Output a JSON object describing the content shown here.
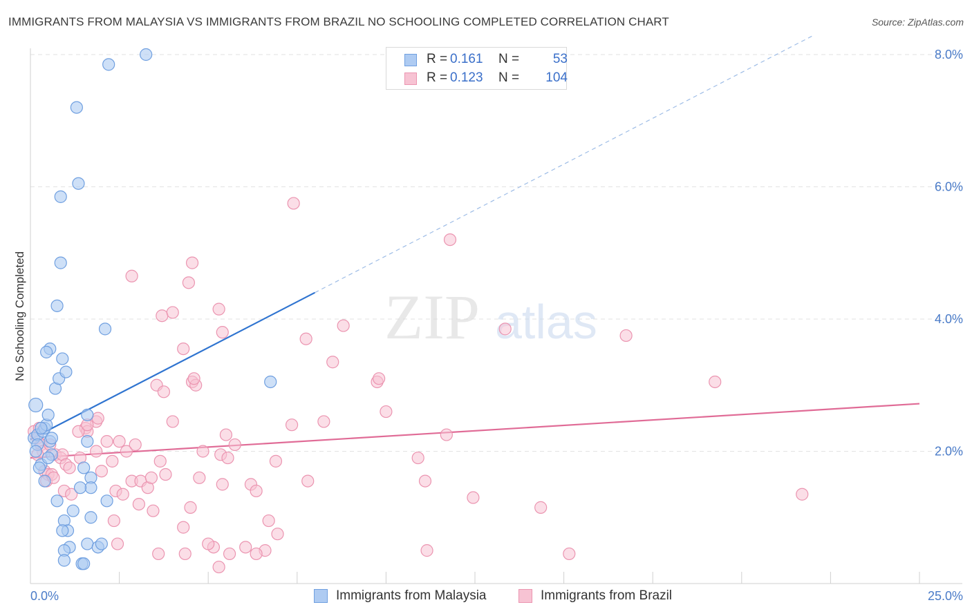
{
  "header": {
    "title": "IMMIGRANTS FROM MALAYSIA VS IMMIGRANTS FROM BRAZIL NO SCHOOLING COMPLETED CORRELATION CHART",
    "source": "Source: ZipAtlas.com"
  },
  "watermark": {
    "zip": "ZIP",
    "atlas": "atlas"
  },
  "legend_top": {
    "rows": [
      {
        "r_label": "R =",
        "r_value": "0.161",
        "n_label": "N =",
        "n_value": "53"
      },
      {
        "r_label": "R =",
        "r_value": "0.123",
        "n_label": "N =",
        "n_value": "104"
      }
    ]
  },
  "colors": {
    "malaysia_fill": "#aecbf2",
    "malaysia_stroke": "#6f9fe0",
    "malaysia_line": "#2f74d0",
    "brazil_fill": "#f7c3d3",
    "brazil_stroke": "#eb94b0",
    "brazil_line": "#e06b96",
    "tick_text": "#4a7bc8",
    "grid": "#e2e2e2"
  },
  "chart_data": {
    "type": "scatter",
    "title": "IMMIGRANTS FROM MALAYSIA VS IMMIGRANTS FROM BRAZIL NO SCHOOLING COMPLETED CORRELATION CHART",
    "xlabel": "",
    "ylabel": "No Schooling Completed",
    "xlim": [
      0,
      25
    ],
    "ylim": [
      0,
      8.5
    ],
    "x_tick_labels": [
      "0.0%",
      "25.0%"
    ],
    "y_ticks": [
      2,
      4,
      6,
      8
    ],
    "y_tick_labels": [
      "2.0%",
      "4.0%",
      "6.0%",
      "8.0%"
    ],
    "grid": true,
    "legend": "bottom",
    "series": [
      {
        "name": "Immigrants from Malaysia",
        "R": 0.161,
        "N": 53,
        "trend": {
          "x0": 0,
          "y0": 2.18,
          "x1": 8.0,
          "y1": 4.4,
          "dashed_to_x": 25,
          "dashed_to_y": 9.1
        },
        "points": [
          [
            0.15,
            2.7
          ],
          [
            0.1,
            2.2
          ],
          [
            0.2,
            2.25
          ],
          [
            0.2,
            2.1
          ],
          [
            0.15,
            2.0
          ],
          [
            0.3,
            1.8
          ],
          [
            0.25,
            1.75
          ],
          [
            0.35,
            2.3
          ],
          [
            0.4,
            2.35
          ],
          [
            0.45,
            2.4
          ],
          [
            0.5,
            2.55
          ],
          [
            0.55,
            2.15
          ],
          [
            0.6,
            2.2
          ],
          [
            0.6,
            1.95
          ],
          [
            0.5,
            1.9
          ],
          [
            0.4,
            1.55
          ],
          [
            0.3,
            2.35
          ],
          [
            0.7,
            2.95
          ],
          [
            0.8,
            3.1
          ],
          [
            0.9,
            3.4
          ],
          [
            1.0,
            3.2
          ],
          [
            0.55,
            3.55
          ],
          [
            0.45,
            3.5
          ],
          [
            0.75,
            4.2
          ],
          [
            0.85,
            4.85
          ],
          [
            0.85,
            5.85
          ],
          [
            1.35,
            6.05
          ],
          [
            1.3,
            7.2
          ],
          [
            2.2,
            7.85
          ],
          [
            3.25,
            8.0
          ],
          [
            2.1,
            3.85
          ],
          [
            1.6,
            2.55
          ],
          [
            1.6,
            2.15
          ],
          [
            1.7,
            1.6
          ],
          [
            1.7,
            1.45
          ],
          [
            1.4,
            1.45
          ],
          [
            1.5,
            1.75
          ],
          [
            1.2,
            1.1
          ],
          [
            1.7,
            1.0
          ],
          [
            0.95,
            0.95
          ],
          [
            0.75,
            1.25
          ],
          [
            1.05,
            0.8
          ],
          [
            0.9,
            0.8
          ],
          [
            1.1,
            0.55
          ],
          [
            1.6,
            0.6
          ],
          [
            0.95,
            0.5
          ],
          [
            1.9,
            0.55
          ],
          [
            2.0,
            0.6
          ],
          [
            2.15,
            1.25
          ],
          [
            1.45,
            0.3
          ],
          [
            1.5,
            0.3
          ],
          [
            0.95,
            0.35
          ],
          [
            6.75,
            3.05
          ]
        ]
      },
      {
        "name": "Immigrants from Brazil",
        "R": 0.123,
        "N": 104,
        "trend": {
          "x0": 0,
          "y0": 1.9,
          "x1": 25,
          "y1": 2.72
        },
        "points": [
          [
            0.1,
            2.3
          ],
          [
            0.2,
            2.2
          ],
          [
            0.3,
            2.1
          ],
          [
            0.35,
            2.0
          ],
          [
            0.2,
            1.95
          ],
          [
            0.4,
            1.7
          ],
          [
            0.5,
            1.65
          ],
          [
            0.45,
            1.55
          ],
          [
            0.6,
            1.65
          ],
          [
            0.7,
            1.95
          ],
          [
            0.85,
            1.9
          ],
          [
            0.9,
            1.95
          ],
          [
            1.0,
            1.8
          ],
          [
            1.1,
            1.75
          ],
          [
            0.95,
            1.4
          ],
          [
            1.15,
            1.35
          ],
          [
            1.4,
            1.9
          ],
          [
            1.55,
            2.35
          ],
          [
            1.6,
            2.3
          ],
          [
            1.85,
            2.45
          ],
          [
            1.9,
            2.5
          ],
          [
            1.85,
            2.0
          ],
          [
            2.0,
            1.7
          ],
          [
            2.15,
            2.15
          ],
          [
            2.3,
            1.85
          ],
          [
            2.5,
            2.15
          ],
          [
            2.4,
            1.4
          ],
          [
            2.6,
            1.35
          ],
          [
            2.7,
            2.0
          ],
          [
            2.85,
            1.55
          ],
          [
            2.95,
            2.1
          ],
          [
            3.1,
            1.55
          ],
          [
            3.3,
            1.45
          ],
          [
            3.4,
            1.6
          ],
          [
            3.45,
            1.1
          ],
          [
            3.65,
            1.85
          ],
          [
            3.8,
            1.65
          ],
          [
            3.55,
            3.0
          ],
          [
            3.75,
            2.9
          ],
          [
            4.3,
            3.55
          ],
          [
            4.0,
            2.45
          ],
          [
            4.75,
            1.6
          ],
          [
            4.55,
            3.05
          ],
          [
            4.65,
            3.0
          ],
          [
            4.6,
            3.1
          ],
          [
            4.85,
            2.0
          ],
          [
            5.4,
            1.5
          ],
          [
            5.35,
            1.95
          ],
          [
            5.5,
            2.25
          ],
          [
            5.55,
            1.9
          ],
          [
            5.75,
            2.1
          ],
          [
            5.4,
            3.8
          ],
          [
            5.3,
            4.15
          ],
          [
            6.2,
            1.5
          ],
          [
            6.35,
            1.4
          ],
          [
            6.7,
            0.95
          ],
          [
            6.6,
            0.5
          ],
          [
            6.9,
            1.85
          ],
          [
            7.35,
            2.4
          ],
          [
            7.8,
            1.55
          ],
          [
            7.75,
            3.7
          ],
          [
            8.25,
            2.45
          ],
          [
            8.5,
            3.35
          ],
          [
            8.8,
            3.9
          ],
          [
            9.75,
            3.05
          ],
          [
            9.8,
            3.1
          ],
          [
            10.0,
            2.6
          ],
          [
            10.9,
            1.9
          ],
          [
            11.1,
            1.55
          ],
          [
            11.7,
            2.25
          ],
          [
            11.8,
            5.2
          ],
          [
            12.45,
            1.3
          ],
          [
            13.35,
            3.85
          ],
          [
            14.35,
            1.15
          ],
          [
            15.15,
            0.45
          ],
          [
            16.75,
            3.75
          ],
          [
            19.25,
            3.05
          ],
          [
            21.7,
            1.35
          ],
          [
            7.4,
            5.75
          ],
          [
            4.55,
            4.85
          ],
          [
            4.45,
            4.55
          ],
          [
            3.7,
            4.05
          ],
          [
            2.85,
            4.65
          ],
          [
            4.0,
            4.1
          ],
          [
            4.5,
            1.15
          ],
          [
            4.3,
            0.85
          ],
          [
            2.45,
            0.6
          ],
          [
            3.6,
            0.45
          ],
          [
            4.35,
            0.45
          ],
          [
            5.15,
            0.55
          ],
          [
            5.3,
            0.25
          ],
          [
            5.6,
            0.45
          ],
          [
            6.05,
            0.55
          ],
          [
            6.35,
            0.45
          ],
          [
            6.95,
            0.75
          ],
          [
            11.15,
            0.5
          ],
          [
            0.25,
            2.35
          ],
          [
            0.55,
            2.1
          ],
          [
            0.65,
            1.6
          ],
          [
            1.35,
            2.3
          ],
          [
            1.6,
            2.4
          ],
          [
            2.35,
            0.95
          ],
          [
            3.05,
            1.2
          ],
          [
            5.0,
            0.6
          ]
        ]
      }
    ]
  },
  "legend_bottom": {
    "items": [
      "Immigrants from Malaysia",
      "Immigrants from Brazil"
    ]
  }
}
